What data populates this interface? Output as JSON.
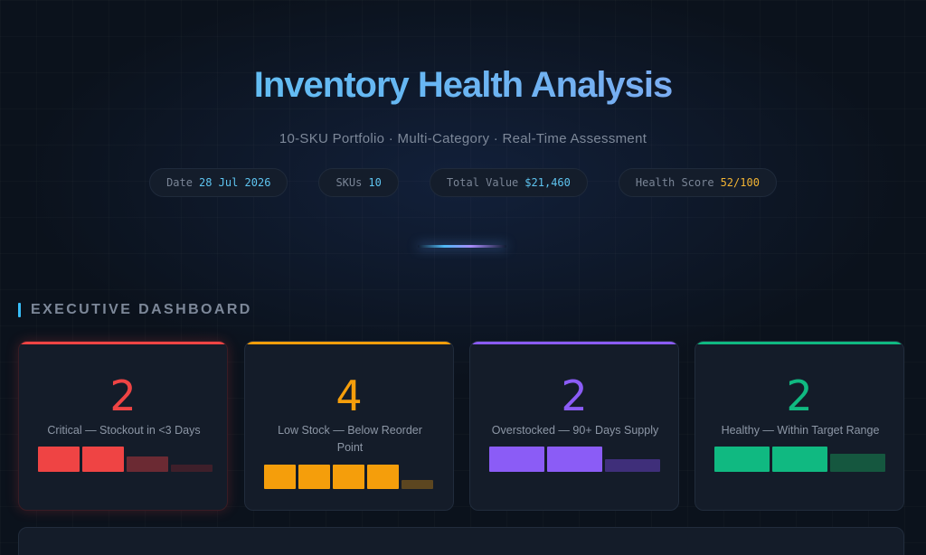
{
  "header": {
    "title": "Inventory Health Analysis",
    "subtitle": "10-SKU Portfolio · Multi-Category · Real-Time Assessment"
  },
  "meta_pills": [
    {
      "label": "Date",
      "value": "28 Jul 2026"
    },
    {
      "label": "SKUs",
      "value": "10"
    },
    {
      "label": "Total Value",
      "value": "$21,460"
    },
    {
      "label": "Health Score",
      "value": "52/100"
    }
  ],
  "section": {
    "title": "EXECUTIVE DASHBOARD"
  },
  "colors": {
    "critical": "#ef4444",
    "low": "#f59e0b",
    "overstocked": "#8b5cf6",
    "healthy": "#10b981",
    "accent": "#38bdf8"
  },
  "cards": [
    {
      "count": "2",
      "label": "Critical — Stockout in <3 Days",
      "status": "critical"
    },
    {
      "count": "4",
      "label": "Low Stock — Below Reorder Point",
      "status": "low"
    },
    {
      "count": "2",
      "label": "Overstocked — 90+ Days Supply",
      "status": "overstocked"
    },
    {
      "count": "2",
      "label": "Healthy — Within Target Range",
      "status": "healthy"
    }
  ]
}
